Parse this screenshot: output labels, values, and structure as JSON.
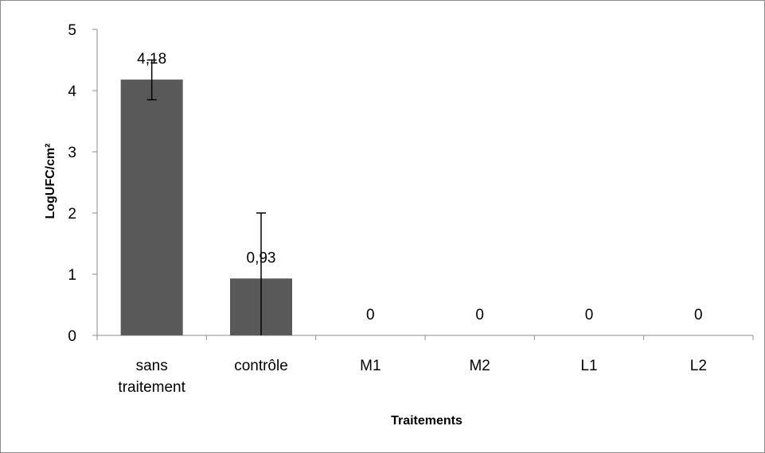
{
  "chart_data": {
    "type": "bar",
    "title": "",
    "xlabel": "Traitements",
    "ylabel": "LogUFC/cm²",
    "ylim": [
      0,
      5
    ],
    "yticks": [
      0,
      1,
      2,
      3,
      4,
      5
    ],
    "categories": [
      [
        "sans",
        "traitement"
      ],
      [
        "contrôle"
      ],
      [
        "M1"
      ],
      [
        "M2"
      ],
      [
        "L1"
      ],
      [
        "L2"
      ]
    ],
    "values": [
      4.18,
      0.93,
      0,
      0,
      0,
      0
    ],
    "data_labels": [
      "4,18",
      "0,93",
      "0",
      "0",
      "0",
      "0"
    ],
    "error_bars": [
      {
        "low": 3.85,
        "high": 4.5
      },
      {
        "low": 0,
        "high": 2.0
      },
      null,
      null,
      null,
      null
    ],
    "grid": false,
    "legend": "none",
    "bar_color": "#595959",
    "axis_color": "#8c8c8c"
  }
}
